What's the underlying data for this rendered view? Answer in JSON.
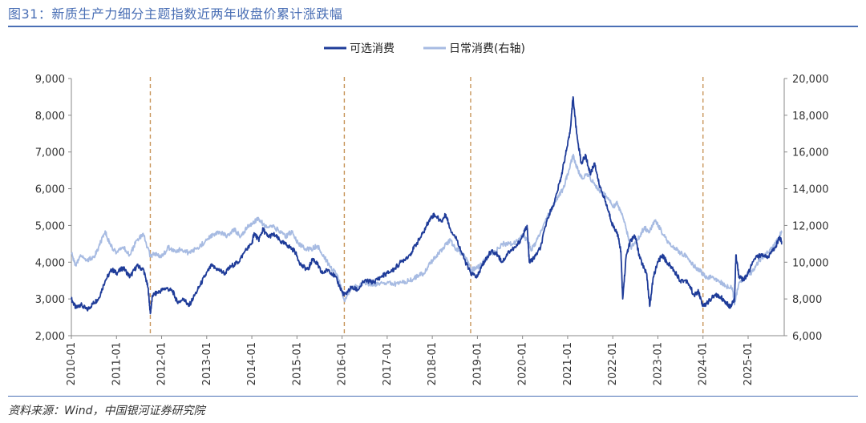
{
  "title": "图31：新质生产力细分主题指数近两年收盘价累计涨跌幅",
  "source": "资料来源：Wind，中国银河证券研究院",
  "colors": {
    "series_a": "#1f3c99",
    "series_b": "#a7bbe2",
    "vline": "#c8955a",
    "axis": "#888888"
  },
  "chart_data": {
    "type": "line",
    "title": "",
    "xlabel": "",
    "ylabel": "",
    "y_left": {
      "min": 2000,
      "max": 9000,
      "ticks": [
        "2,000",
        "3,000",
        "4,000",
        "5,000",
        "6,000",
        "7,000",
        "8,000",
        "9,000"
      ]
    },
    "y_right": {
      "min": 6000,
      "max": 20000,
      "ticks": [
        "6,000",
        "8,000",
        "10,000",
        "12,000",
        "14,000",
        "16,000",
        "18,000",
        "20,000"
      ]
    },
    "x_range": [
      2010.0,
      2025.8
    ],
    "x_ticks": [
      "2010-01",
      "2011-01",
      "2012-01",
      "2013-01",
      "2014-01",
      "2015-01",
      "2016-01",
      "2017-01",
      "2018-01",
      "2019-01",
      "2020-01",
      "2021-01",
      "2022-01",
      "2023-01",
      "2024-01",
      "2025-01"
    ],
    "vlines": [
      2011.75,
      2016.05,
      2018.85,
      2024.0
    ],
    "series": [
      {
        "name": "可选消费",
        "axis": "left",
        "points": [
          [
            2010.0,
            3000
          ],
          [
            2010.1,
            2750
          ],
          [
            2010.2,
            2850
          ],
          [
            2010.35,
            2700
          ],
          [
            2010.5,
            2900
          ],
          [
            2010.6,
            3000
          ],
          [
            2010.75,
            3500
          ],
          [
            2010.9,
            3800
          ],
          [
            2011.0,
            3700
          ],
          [
            2011.15,
            3850
          ],
          [
            2011.3,
            3600
          ],
          [
            2011.45,
            3900
          ],
          [
            2011.6,
            3800
          ],
          [
            2011.7,
            3300
          ],
          [
            2011.75,
            2600
          ],
          [
            2011.8,
            3100
          ],
          [
            2011.95,
            3200
          ],
          [
            2012.1,
            3300
          ],
          [
            2012.25,
            3200
          ],
          [
            2012.35,
            2900
          ],
          [
            2012.5,
            3000
          ],
          [
            2012.6,
            2800
          ],
          [
            2012.8,
            3250
          ],
          [
            2012.95,
            3600
          ],
          [
            2013.1,
            3900
          ],
          [
            2013.25,
            3800
          ],
          [
            2013.4,
            3700
          ],
          [
            2013.55,
            3900
          ],
          [
            2013.7,
            4000
          ],
          [
            2013.85,
            4300
          ],
          [
            2014.0,
            4500
          ],
          [
            2014.05,
            4800
          ],
          [
            2014.15,
            4600
          ],
          [
            2014.25,
            4900
          ],
          [
            2014.35,
            4700
          ],
          [
            2014.5,
            4750
          ],
          [
            2014.65,
            4550
          ],
          [
            2014.8,
            4450
          ],
          [
            2014.95,
            4300
          ],
          [
            2015.1,
            3900
          ],
          [
            2015.25,
            3800
          ],
          [
            2015.35,
            4100
          ],
          [
            2015.45,
            3950
          ],
          [
            2015.55,
            3700
          ],
          [
            2015.7,
            3800
          ],
          [
            2015.85,
            3600
          ],
          [
            2016.0,
            3200
          ],
          [
            2016.05,
            3100
          ],
          [
            2016.2,
            3300
          ],
          [
            2016.35,
            3250
          ],
          [
            2016.5,
            3500
          ],
          [
            2016.7,
            3450
          ],
          [
            2016.85,
            3600
          ],
          [
            2017.0,
            3700
          ],
          [
            2017.15,
            3800
          ],
          [
            2017.3,
            4000
          ],
          [
            2017.5,
            4200
          ],
          [
            2017.65,
            4500
          ],
          [
            2017.8,
            4800
          ],
          [
            2017.95,
            5200
          ],
          [
            2018.05,
            5300
          ],
          [
            2018.2,
            5100
          ],
          [
            2018.3,
            5300
          ],
          [
            2018.4,
            4900
          ],
          [
            2018.55,
            4600
          ],
          [
            2018.7,
            4100
          ],
          [
            2018.85,
            3700
          ],
          [
            2019.0,
            3600
          ],
          [
            2019.1,
            3900
          ],
          [
            2019.2,
            4100
          ],
          [
            2019.3,
            4300
          ],
          [
            2019.45,
            4200
          ],
          [
            2019.55,
            4000
          ],
          [
            2019.7,
            4300
          ],
          [
            2019.85,
            4400
          ],
          [
            2020.0,
            4700
          ],
          [
            2020.1,
            5000
          ],
          [
            2020.15,
            4000
          ],
          [
            2020.25,
            4100
          ],
          [
            2020.4,
            4400
          ],
          [
            2020.55,
            5200
          ],
          [
            2020.7,
            5600
          ],
          [
            2020.85,
            6300
          ],
          [
            2020.95,
            6900
          ],
          [
            2021.05,
            7500
          ],
          [
            2021.12,
            8500
          ],
          [
            2021.2,
            7500
          ],
          [
            2021.3,
            6700
          ],
          [
            2021.4,
            6900
          ],
          [
            2021.5,
            6400
          ],
          [
            2021.6,
            6700
          ],
          [
            2021.7,
            6100
          ],
          [
            2021.8,
            5800
          ],
          [
            2021.9,
            5400
          ],
          [
            2022.0,
            5000
          ],
          [
            2022.1,
            4800
          ],
          [
            2022.18,
            4300
          ],
          [
            2022.22,
            3000
          ],
          [
            2022.3,
            4200
          ],
          [
            2022.4,
            4600
          ],
          [
            2022.5,
            4700
          ],
          [
            2022.6,
            4100
          ],
          [
            2022.75,
            3700
          ],
          [
            2022.82,
            2800
          ],
          [
            2022.9,
            3600
          ],
          [
            2023.0,
            4000
          ],
          [
            2023.1,
            4200
          ],
          [
            2023.2,
            4000
          ],
          [
            2023.35,
            3800
          ],
          [
            2023.5,
            3500
          ],
          [
            2023.65,
            3500
          ],
          [
            2023.8,
            3100
          ],
          [
            2023.9,
            3200
          ],
          [
            2024.0,
            2800
          ],
          [
            2024.1,
            2900
          ],
          [
            2024.25,
            3100
          ],
          [
            2024.4,
            3050
          ],
          [
            2024.5,
            2900
          ],
          [
            2024.6,
            2800
          ],
          [
            2024.7,
            3000
          ],
          [
            2024.73,
            4200
          ],
          [
            2024.8,
            3600
          ],
          [
            2024.9,
            3500
          ],
          [
            2025.0,
            3700
          ],
          [
            2025.15,
            4100
          ],
          [
            2025.3,
            4200
          ],
          [
            2025.45,
            4150
          ],
          [
            2025.6,
            4400
          ],
          [
            2025.7,
            4700
          ],
          [
            2025.75,
            4500
          ]
        ]
      },
      {
        "name": "日常消费(右轴)",
        "axis": "right",
        "points": [
          [
            2010.0,
            10500
          ],
          [
            2010.1,
            9800
          ],
          [
            2010.2,
            10400
          ],
          [
            2010.35,
            10100
          ],
          [
            2010.5,
            10300
          ],
          [
            2010.6,
            10800
          ],
          [
            2010.75,
            11700
          ],
          [
            2010.85,
            11000
          ],
          [
            2011.0,
            10500
          ],
          [
            2011.15,
            10800
          ],
          [
            2011.3,
            10400
          ],
          [
            2011.45,
            11200
          ],
          [
            2011.6,
            11500
          ],
          [
            2011.75,
            10300
          ],
          [
            2011.85,
            10500
          ],
          [
            2012.0,
            10300
          ],
          [
            2012.15,
            10800
          ],
          [
            2012.3,
            10600
          ],
          [
            2012.45,
            10700
          ],
          [
            2012.6,
            10500
          ],
          [
            2012.8,
            10800
          ],
          [
            2013.0,
            11200
          ],
          [
            2013.15,
            11500
          ],
          [
            2013.3,
            11600
          ],
          [
            2013.45,
            11400
          ],
          [
            2013.6,
            11800
          ],
          [
            2013.75,
            11400
          ],
          [
            2013.9,
            11900
          ],
          [
            2014.0,
            12100
          ],
          [
            2014.15,
            12400
          ],
          [
            2014.3,
            11900
          ],
          [
            2014.45,
            12000
          ],
          [
            2014.6,
            11700
          ],
          [
            2014.75,
            11400
          ],
          [
            2014.9,
            11700
          ],
          [
            2015.0,
            11100
          ],
          [
            2015.15,
            10800
          ],
          [
            2015.3,
            10700
          ],
          [
            2015.45,
            10900
          ],
          [
            2015.6,
            10300
          ],
          [
            2015.75,
            9700
          ],
          [
            2015.9,
            9300
          ],
          [
            2016.05,
            7900
          ],
          [
            2016.2,
            8600
          ],
          [
            2016.35,
            8700
          ],
          [
            2016.5,
            8900
          ],
          [
            2016.65,
            8800
          ],
          [
            2016.8,
            8800
          ],
          [
            2017.0,
            8900
          ],
          [
            2017.15,
            8800
          ],
          [
            2017.3,
            8900
          ],
          [
            2017.5,
            9000
          ],
          [
            2017.65,
            9200
          ],
          [
            2017.8,
            9400
          ],
          [
            2017.95,
            9900
          ],
          [
            2018.1,
            10400
          ],
          [
            2018.25,
            10800
          ],
          [
            2018.4,
            11200
          ],
          [
            2018.5,
            10800
          ],
          [
            2018.6,
            10600
          ],
          [
            2018.75,
            10200
          ],
          [
            2018.85,
            9600
          ],
          [
            2019.0,
            9700
          ],
          [
            2019.1,
            9900
          ],
          [
            2019.25,
            10400
          ],
          [
            2019.4,
            10600
          ],
          [
            2019.55,
            11000
          ],
          [
            2019.7,
            11000
          ],
          [
            2019.85,
            11100
          ],
          [
            2020.0,
            11400
          ],
          [
            2020.1,
            11200
          ],
          [
            2020.2,
            10700
          ],
          [
            2020.3,
            11100
          ],
          [
            2020.45,
            11900
          ],
          [
            2020.6,
            12700
          ],
          [
            2020.75,
            13400
          ],
          [
            2020.9,
            14000
          ],
          [
            2021.0,
            14800
          ],
          [
            2021.12,
            15800
          ],
          [
            2021.2,
            15200
          ],
          [
            2021.3,
            14600
          ],
          [
            2021.45,
            14800
          ],
          [
            2021.6,
            14200
          ],
          [
            2021.75,
            13800
          ],
          [
            2021.9,
            13500
          ],
          [
            2022.0,
            13000
          ],
          [
            2022.1,
            13200
          ],
          [
            2022.2,
            12600
          ],
          [
            2022.3,
            11800
          ],
          [
            2022.4,
            10800
          ],
          [
            2022.55,
            11200
          ],
          [
            2022.7,
            11900
          ],
          [
            2022.8,
            11600
          ],
          [
            2022.95,
            12300
          ],
          [
            2023.05,
            11800
          ],
          [
            2023.2,
            11200
          ],
          [
            2023.35,
            10800
          ],
          [
            2023.5,
            10500
          ],
          [
            2023.65,
            10300
          ],
          [
            2023.8,
            9800
          ],
          [
            2023.95,
            9500
          ],
          [
            2024.05,
            9200
          ],
          [
            2024.2,
            9200
          ],
          [
            2024.35,
            9000
          ],
          [
            2024.5,
            8700
          ],
          [
            2024.65,
            8600
          ],
          [
            2024.7,
            7700
          ],
          [
            2024.8,
            8900
          ],
          [
            2024.95,
            9200
          ],
          [
            2025.1,
            9500
          ],
          [
            2025.25,
            10100
          ],
          [
            2025.4,
            10500
          ],
          [
            2025.55,
            10800
          ],
          [
            2025.65,
            11200
          ],
          [
            2025.75,
            11700
          ]
        ]
      }
    ]
  }
}
